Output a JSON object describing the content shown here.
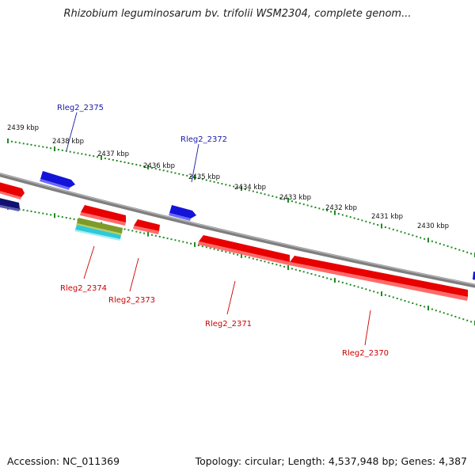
{
  "title": "Rhizobium leguminosarum bv. trifolii WSM2304, complete genom...",
  "footer": {
    "accession": "Accession: NC_011369",
    "summary": "Topology: circular; Length: 4,537,948 bp; Genes: 4,387"
  },
  "colors": {
    "backbone": "#7f7f7f",
    "tick": "#1f8a1f",
    "forward_gene": "#1414d8",
    "reverse_gene": "#e80000",
    "forward_label": "#1a1aaa",
    "reverse_label": "#cc0000",
    "rna_olive": "#7e9b2a",
    "rna_cyan": "#2fc8d8",
    "dark_gene": "#101070"
  },
  "ticks": [
    {
      "label": "2439 kbp"
    },
    {
      "label": "2438 kbp"
    },
    {
      "label": "2437 kbp"
    },
    {
      "label": "2436 kbp"
    },
    {
      "label": "2435 kbp"
    },
    {
      "label": "2434 kbp"
    },
    {
      "label": "2433 kbp"
    },
    {
      "label": "2432 kbp"
    },
    {
      "label": "2431 kbp"
    },
    {
      "label": "2430 kbp"
    }
  ],
  "genes": [
    {
      "name": "Rleg2_2375",
      "strand": "forward"
    },
    {
      "name": "Rleg2_2372",
      "strand": "forward"
    },
    {
      "name": "Rleg2_2374",
      "strand": "reverse"
    },
    {
      "name": "Rleg2_2373",
      "strand": "reverse"
    },
    {
      "name": "Rleg2_2371",
      "strand": "reverse"
    },
    {
      "name": "Rleg2_2370",
      "strand": "reverse"
    }
  ]
}
